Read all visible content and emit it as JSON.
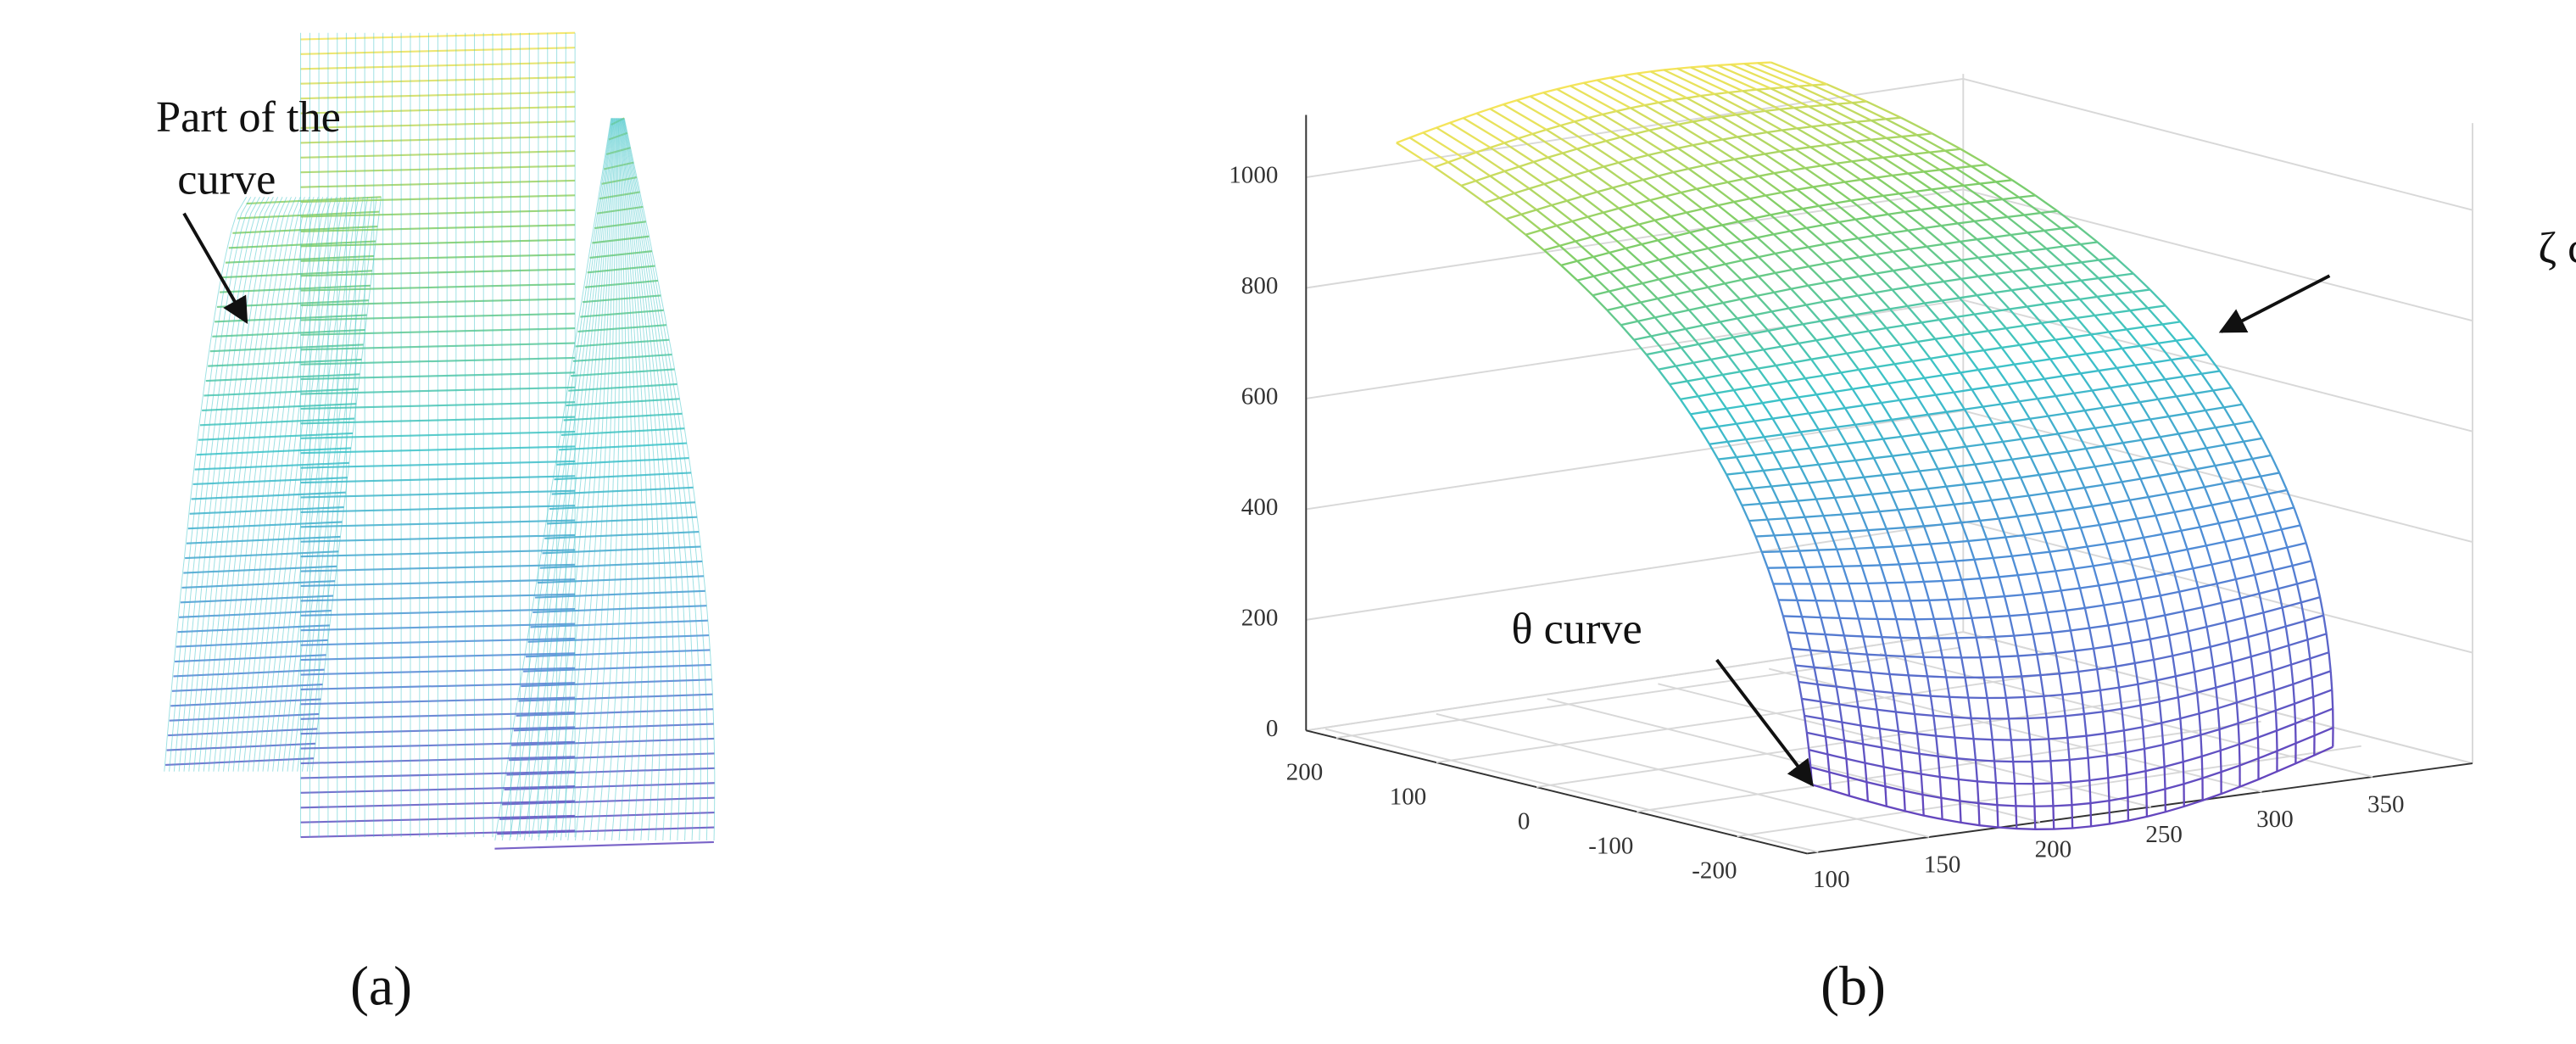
{
  "panels": [
    {
      "label": "(a)",
      "annotation_lines": [
        "Part of  the",
        "curve"
      ]
    },
    {
      "label": "(b)",
      "annotations": [
        "ζ curve",
        "θ curve"
      ],
      "z_ticks": [
        "0",
        "200",
        "400",
        "600",
        "800",
        "1000"
      ],
      "y_ticks": [
        "200",
        "100",
        "0",
        "-100",
        "-200"
      ],
      "x_ticks": [
        "100",
        "150",
        "200",
        "250",
        "300",
        "350"
      ]
    }
  ]
}
